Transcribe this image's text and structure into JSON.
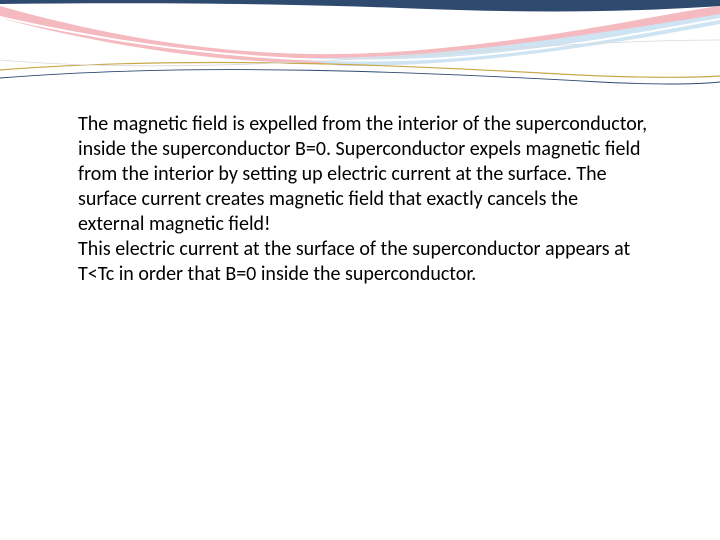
{
  "slide": {
    "body_text": "The magnetic field is expelled from the interior of the superconductor, inside the superconductor B=0. Superconductor expels magnetic field from the interior by setting up electric current at the surface. The surface current creates magnetic field that exactly cancels the external magnetic field!\nThis electric current at the surface of the superconductor appears at T<Tc in order that B=0 inside the superconductor."
  },
  "decoration": {
    "bg_color": "#ffffff",
    "wave_navy": "#2f4a6f",
    "wave_pink": "#f5b9c0",
    "wave_lightblue": "#cfe4f2",
    "wave_gold": "#c9a84a",
    "text_color": "#000000",
    "body_fontsize": 20
  }
}
